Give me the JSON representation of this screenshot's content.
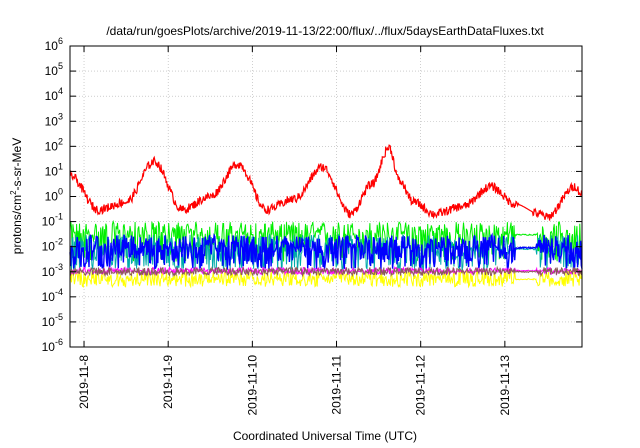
{
  "chart_data": {
    "type": "line",
    "title": "/data/run/goesPlots/archive/2019-11-13/22:00/flux/../flux/5daysEarthDataFluxes.txt",
    "xlabel": "Coordinated Universal Time (UTC)",
    "ylabel": {
      "base": "protons/cm",
      "sup": "2",
      "rest": "-s-sr-MeV"
    },
    "y_scale": "log",
    "ylim": [
      1e-06,
      1000000.0
    ],
    "xlim": [
      "2019-11-07 20:00",
      "2019-11-13 22:00"
    ],
    "y_ticks": [
      {
        "base": "10",
        "exp": "6"
      },
      {
        "base": "10",
        "exp": "5"
      },
      {
        "base": "10",
        "exp": "4"
      },
      {
        "base": "10",
        "exp": "3"
      },
      {
        "base": "10",
        "exp": "2"
      },
      {
        "base": "10",
        "exp": "1"
      },
      {
        "base": "10",
        "exp": "0"
      },
      {
        "base": "10",
        "exp": "-1"
      },
      {
        "base": "10",
        "exp": "-2"
      },
      {
        "base": "10",
        "exp": "-3"
      },
      {
        "base": "10",
        "exp": "-4"
      },
      {
        "base": "10",
        "exp": "-5"
      },
      {
        "base": "10",
        "exp": "-6"
      }
    ],
    "x_ticks": [
      "2019-11-8",
      "2019-11-9",
      "2019-11-10",
      "2019-11-11",
      "2019-11-12",
      "2019-11-13"
    ],
    "grid": true,
    "series": [
      {
        "color": "#ff0000",
        "x": [
          "2019-11-07 20:00",
          "2019-11-08 04:00",
          "2019-11-08 12:00",
          "2019-11-08 20:00",
          "2019-11-09 04:00",
          "2019-11-09 12:00",
          "2019-11-09 20:00",
          "2019-11-10 04:00",
          "2019-11-10 12:00",
          "2019-11-10 20:00",
          "2019-11-11 04:00",
          "2019-11-11 10:00",
          "2019-11-11 15:00",
          "2019-11-11 18:00",
          "2019-11-11 22:00",
          "2019-11-12 04:00",
          "2019-11-12 12:00",
          "2019-11-12 20:00",
          "2019-11-13 03:00",
          "2019-11-13 10:00",
          "2019-11-13 12:00",
          "2019-11-13 20:00",
          "2019-11-13 22:00"
        ],
        "y": [
          7,
          0.3,
          0.6,
          25,
          0.3,
          1.0,
          20,
          0.3,
          0.8,
          15,
          0.2,
          3,
          90,
          4,
          0.6,
          0.2,
          0.4,
          2.5,
          0.5,
          0.2,
          0.15,
          2.5,
          1.2
        ]
      },
      {
        "color": "#00ee00",
        "x": [
          "2019-11-07 20:00",
          "2019-11-13 22:00"
        ],
        "y_range": [
          0.0025,
          0.1
        ],
        "typical": 0.03
      },
      {
        "color": "#00aaaa",
        "x": [
          "2019-11-07 20:00",
          "2019-11-13 22:00"
        ],
        "y_range": [
          0.001,
          0.03
        ],
        "typical": 0.008
      },
      {
        "color": "#0000ff",
        "x": [
          "2019-11-07 20:00",
          "2019-11-13 22:00"
        ],
        "y_range": [
          0.0012,
          0.03
        ],
        "typical": 0.009
      },
      {
        "color": "#ffff00",
        "x": [
          "2019-11-07 20:00",
          "2019-11-13 22:00"
        ],
        "y_range": [
          0.00025,
          0.0012
        ],
        "typical": 0.0005
      },
      {
        "color": "#ff00ff",
        "x": [
          "2019-11-07 20:00",
          "2019-11-13 22:00"
        ],
        "y_range": [
          0.0008,
          0.0015
        ],
        "typical": 0.0011
      },
      {
        "color": "#8b5a5a",
        "x": [
          "2019-11-07 20:00",
          "2019-11-13 22:00"
        ],
        "y_range": [
          0.0007,
          0.0015
        ],
        "typical": 0.001
      }
    ]
  }
}
